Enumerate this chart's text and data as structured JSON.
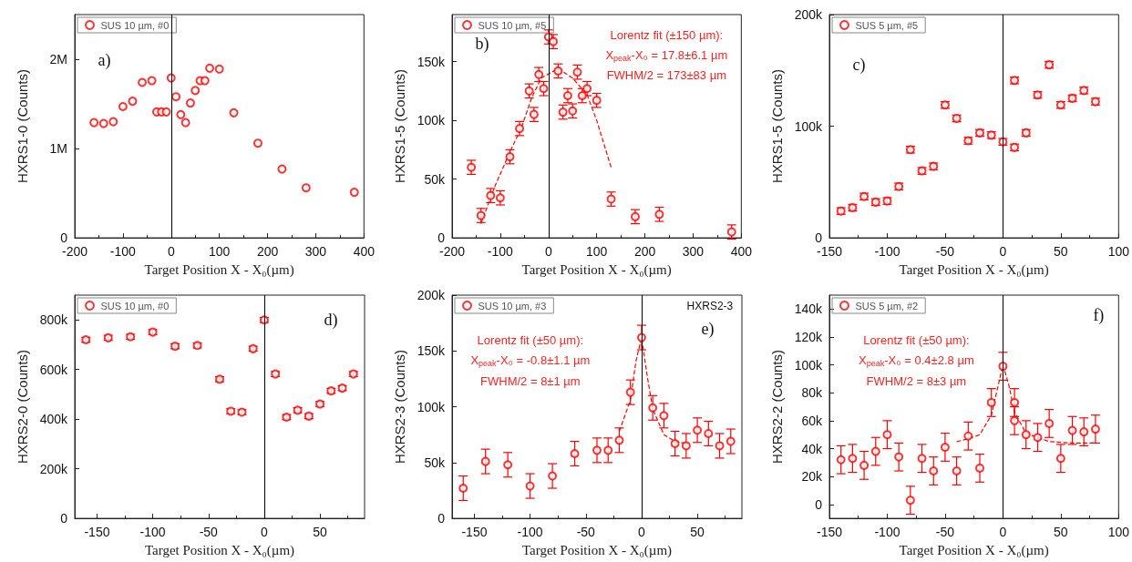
{
  "chart_data": [
    {
      "type": "scatter",
      "xlabel": "Target Position X - X₀(µm)",
      "ylabel": "HXRS1-0 (Counts)",
      "xlim": [
        -200,
        400
      ],
      "xticks": [
        -200,
        -100,
        0,
        100,
        200,
        300,
        400
      ],
      "ylim": [
        0,
        2500000
      ],
      "yticks": [
        {
          "value": 0,
          "label": "0"
        },
        {
          "value": 1000000,
          "label": "1M"
        },
        {
          "value": 2000000,
          "label": "2M"
        }
      ],
      "legend": "top left",
      "marker": "circle",
      "ref_lines": [
        {
          "axis": "x",
          "value": 0
        }
      ],
      "annotations": [
        "a)"
      ],
      "x": [
        -160,
        -140,
        -120,
        -100,
        -80,
        -60,
        -40,
        -30,
        -20,
        -10,
        0,
        10,
        20,
        30,
        40,
        50,
        60,
        70,
        80,
        100,
        130,
        180,
        230,
        280,
        380
      ],
      "series": [
        {
          "name": "SUS 10 µm, #0",
          "color": "#ff0000",
          "values": [
            1290000,
            1280000,
            1300000,
            1470000,
            1530000,
            1740000,
            1760000,
            1410000,
            1410000,
            1410000,
            1790000,
            1580000,
            1380000,
            1290000,
            1510000,
            1650000,
            1760000,
            1760000,
            1900000,
            1890000,
            1400000,
            1060000,
            770000,
            560000,
            510000
          ]
        }
      ]
    },
    {
      "type": "scatter",
      "xlabel": "Target Position X - X₀(µm)",
      "ylabel": "HXRS1-5 (Counts)",
      "xlim": [
        -200,
        400
      ],
      "xticks": [
        -200,
        -100,
        0,
        100,
        200,
        300,
        400
      ],
      "ylim": [
        0,
        190000
      ],
      "yticks": [
        {
          "value": 0,
          "label": "0"
        },
        {
          "value": 50000,
          "label": "50k"
        },
        {
          "value": 100000,
          "label": "100k"
        },
        {
          "value": 150000,
          "label": "150k"
        }
      ],
      "legend": "top left",
      "marker": "circle",
      "ref_lines": [
        {
          "axis": "x",
          "value": 0
        }
      ],
      "annotations": [
        "b)",
        "Lorentz fit (±150 µm):",
        "X$_{peak}$-X₀ = 17.8±6.1 µm",
        "FWHM/2 = 173±83 µm"
      ],
      "x": [
        -160,
        -140,
        -120,
        -100,
        -80,
        -60,
        -40,
        -30,
        -20,
        -10,
        0,
        10,
        20,
        30,
        40,
        50,
        60,
        70,
        80,
        100,
        130,
        180,
        230,
        380
      ],
      "series": [
        {
          "name": "SUS 10 µm, #5",
          "color": "#ff0000",
          "values": [
            60000,
            19000,
            36000,
            34000,
            69000,
            93000,
            125000,
            105000,
            139000,
            127000,
            171000,
            167000,
            142000,
            107000,
            121000,
            108000,
            141000,
            121000,
            127000,
            117000,
            33000,
            18000,
            20000,
            5000
          ],
          "errors": [
            6000,
            6000,
            6000,
            6000,
            6000,
            6000,
            6000,
            6000,
            6000,
            6000,
            6000,
            6000,
            6000,
            6000,
            6000,
            6000,
            6000,
            6000,
            6000,
            6000,
            6000,
            6000,
            6000,
            6000
          ]
        },
        {
          "type": "line",
          "color": "#ff0000",
          "line_style": "dashed",
          "marker": "none",
          "x": [
            -140,
            -110,
            -80,
            -55,
            -35,
            -15,
            20,
            50,
            80,
            100,
            130
          ],
          "values": [
            12000,
            45000,
            73000,
            95000,
            119000,
            136000,
            144000,
            136000,
            122000,
            100000,
            60000
          ]
        }
      ]
    },
    {
      "type": "scatter",
      "xlabel": "Target Position X - X₀(µm)",
      "ylabel": "HXRS1-5 (Counts)",
      "xlim": [
        -150,
        100
      ],
      "xticks": [
        -150,
        -100,
        -50,
        0,
        50,
        100
      ],
      "ylim": [
        0,
        200000
      ],
      "yticks": [
        {
          "value": 0,
          "label": "0"
        },
        {
          "value": 100000,
          "label": "100k"
        },
        {
          "value": 200000,
          "label": "200k"
        }
      ],
      "legend": "top left",
      "marker": "circle",
      "ref_lines": [
        {
          "axis": "x",
          "value": 0
        }
      ],
      "annotations": [
        "c)"
      ],
      "x": [
        -140,
        -130,
        -120,
        -110,
        -100,
        -90,
        -80,
        -70,
        -60,
        -50,
        -40,
        -30,
        -20,
        -10,
        0,
        10,
        10,
        20,
        30,
        40,
        50,
        60,
        70,
        80
      ],
      "series": [
        {
          "name": "SUS 5 µm, #5",
          "color": "#ff0000",
          "values": [
            24000,
            27000,
            37000,
            32000,
            33000,
            46000,
            79000,
            60000,
            64000,
            119000,
            107000,
            87000,
            94000,
            92000,
            86000,
            81000,
            141000,
            94000,
            128000,
            155000,
            119000,
            125000,
            132000,
            122000
          ],
          "errors": [
            3000,
            3000,
            3000,
            3000,
            3000,
            3000,
            3000,
            3000,
            3000,
            3000,
            3000,
            3000,
            3000,
            3000,
            3000,
            3000,
            3000,
            3000,
            3000,
            3000,
            3000,
            3000,
            3000,
            3000
          ]
        }
      ]
    },
    {
      "type": "scatter",
      "xlabel": "Target Position X - X₀(µm)",
      "ylabel": "HXRS2-0 (Counts)",
      "xlim": [
        -170,
        90
      ],
      "xticks": [
        -150,
        -100,
        -50,
        0,
        50
      ],
      "ylim": [
        0,
        900000
      ],
      "yticks": [
        {
          "value": 0,
          "label": "0"
        },
        {
          "value": 200000,
          "label": "200k"
        },
        {
          "value": 400000,
          "label": "400k"
        },
        {
          "value": 600000,
          "label": "600k"
        },
        {
          "value": 800000,
          "label": "800k"
        }
      ],
      "legend": "top left",
      "marker": "circle",
      "ref_lines": [
        {
          "axis": "x",
          "value": 0
        }
      ],
      "annotations": [
        "d)"
      ],
      "x": [
        -160,
        -140,
        -120,
        -100,
        -80,
        -60,
        -40,
        -30,
        -20,
        -10,
        0,
        10,
        20,
        30,
        40,
        50,
        60,
        70,
        80
      ],
      "series": [
        {
          "name": "SUS 10 µm, #0",
          "color": "#ff0000",
          "values": [
            720000,
            728000,
            732000,
            751000,
            694000,
            697000,
            561000,
            432000,
            428000,
            684000,
            800000,
            582000,
            408000,
            436000,
            412000,
            461000,
            514000,
            525000,
            582000
          ],
          "errors": [
            10000,
            10000,
            10000,
            10000,
            10000,
            10000,
            10000,
            10000,
            10000,
            10000,
            10000,
            10000,
            10000,
            10000,
            10000,
            10000,
            10000,
            10000,
            10000
          ]
        }
      ]
    },
    {
      "type": "scatter",
      "xlabel": "Target Position X - X₀(µm)",
      "ylabel": "HXRS2-3 (Counts)",
      "xlim": [
        -170,
        90
      ],
      "xticks": [
        -150,
        -100,
        -50,
        0,
        50
      ],
      "ylim": [
        0,
        200000
      ],
      "yticks": [
        {
          "value": 0,
          "label": "0"
        },
        {
          "value": 50000,
          "label": "50k"
        },
        {
          "value": 100000,
          "label": "100k"
        },
        {
          "value": 150000,
          "label": "150k"
        },
        {
          "value": 200000,
          "label": "200k"
        }
      ],
      "legend": "top left",
      "marker": "circle",
      "ref_lines": [
        {
          "axis": "x",
          "value": 0
        }
      ],
      "annotations": [
        "HXRS2-3",
        "e)",
        "Lorentz fit (±50 µm):",
        "X$_{peak}$-X₀ = -0.8±1.1 µm",
        "FWHM/2 = 8±1 µm"
      ],
      "x": [
        -160,
        -140,
        -120,
        -100,
        -80,
        -60,
        -40,
        -30,
        -20,
        -10,
        0,
        10,
        20,
        30,
        40,
        50,
        60,
        70,
        80
      ],
      "series": [
        {
          "name": "SUS 10 µm, #3",
          "color": "#ff0000",
          "values": [
            27000,
            51000,
            48000,
            29000,
            38000,
            58000,
            61000,
            61000,
            70000,
            113000,
            162000,
            99000,
            92000,
            67000,
            65000,
            79000,
            76000,
            65000,
            69000
          ],
          "errors": [
            11000,
            11000,
            11000,
            11000,
            11000,
            11000,
            11000,
            11000,
            11000,
            11000,
            11000,
            11000,
            11000,
            11000,
            11000,
            11000,
            11000,
            11000,
            11000
          ]
        },
        {
          "type": "line",
          "color": "#ff0000",
          "line_style": "dashed",
          "marker": "none",
          "x": [
            -20,
            -10,
            -5,
            0,
            5,
            10,
            20,
            30,
            40
          ],
          "values": [
            78000,
            106000,
            141000,
            162000,
            128000,
            98000,
            75000,
            69000,
            67000
          ]
        }
      ]
    },
    {
      "type": "scatter",
      "xlabel": "Target Position X - X₀(µm)",
      "ylabel": "HXRS2-2 (Counts)",
      "xlim": [
        -150,
        100
      ],
      "xticks": [
        -150,
        -100,
        -50,
        0,
        50,
        100
      ],
      "ylim": [
        -10000,
        150000
      ],
      "yticks": [
        {
          "value": 0,
          "label": "0"
        },
        {
          "value": 20000,
          "label": "20k"
        },
        {
          "value": 40000,
          "label": "40k"
        },
        {
          "value": 60000,
          "label": "60k"
        },
        {
          "value": 80000,
          "label": "80k"
        },
        {
          "value": 100000,
          "label": "100k"
        },
        {
          "value": 120000,
          "label": "120k"
        },
        {
          "value": 140000,
          "label": "140k"
        }
      ],
      "legend": "top left",
      "marker": "circle",
      "ref_lines": [
        {
          "axis": "x",
          "value": 0
        }
      ],
      "annotations": [
        "f)",
        "Lorentz fit (±50 µm):",
        "X$_{peak}$-X₀ = 0.4±2.8 µm",
        "FWHM/2 = 8±3 µm"
      ],
      "x": [
        -140,
        -130,
        -120,
        -110,
        -100,
        -90,
        -80,
        -70,
        -60,
        -50,
        -40,
        -30,
        -20,
        -10,
        0,
        10,
        10,
        20,
        30,
        40,
        50,
        60,
        70,
        80
      ],
      "series": [
        {
          "name": "SUS 5 µm, #2",
          "color": "#ff0000",
          "values": [
            32000,
            33000,
            28000,
            38000,
            50000,
            34000,
            3000,
            33000,
            24000,
            41000,
            24000,
            49000,
            26000,
            73000,
            99000,
            73000,
            60000,
            50000,
            48000,
            58000,
            33000,
            53000,
            52000,
            54000
          ],
          "errors": [
            10000,
            10000,
            10000,
            10000,
            10000,
            10000,
            10000,
            10000,
            10000,
            10000,
            10000,
            10000,
            10000,
            10000,
            10000,
            10000,
            10000,
            10000,
            10000,
            10000,
            10000,
            10000,
            10000,
            10000
          ]
        },
        {
          "type": "line",
          "color": "#ff0000",
          "line_style": "dashed",
          "marker": "none",
          "x": [
            -40,
            -30,
            -20,
            -10,
            -5,
            0,
            5,
            10,
            20,
            40,
            60,
            80
          ],
          "values": [
            45000,
            47000,
            50000,
            64000,
            82000,
            100000,
            86000,
            66000,
            51000,
            45000,
            44000,
            44000
          ]
        }
      ]
    }
  ]
}
